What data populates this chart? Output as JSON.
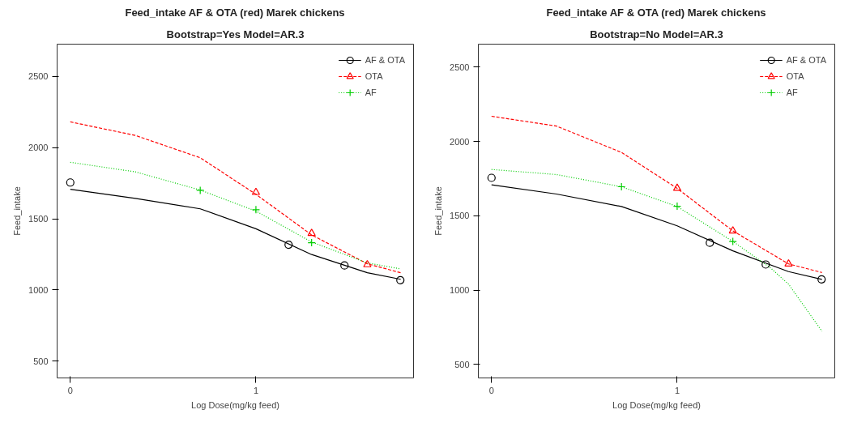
{
  "chart_data": [
    {
      "type": "line",
      "title": "Feed_intake AF & OTA (red) Marek chickens",
      "subtitle": "Bootstrap=Yes Model=AR.3",
      "xlabel": "Log Dose(mg/kg feed)",
      "ylabel": "Feed_intake",
      "xlim": [
        -0.071,
        1.849
      ],
      "ylim": [
        382,
        2727
      ],
      "xticks": [
        0,
        1
      ],
      "yticks": [
        500,
        1000,
        1500,
        2000,
        2500
      ],
      "grid": false,
      "legend": "top right",
      "series": [
        {
          "name": "AF & OTA",
          "color": "#000000",
          "line_style": "solid",
          "marker": "none",
          "x": [
            0,
            0.35,
            0.7,
            1.0,
            1.3,
            1.6,
            1.78
          ],
          "values": [
            1708,
            1643,
            1570,
            1430,
            1249,
            1121,
            1075
          ]
        },
        {
          "name": "OTA",
          "color": "#ff0000",
          "line_style": "dashed",
          "marker": "none",
          "x": [
            0,
            0.35,
            0.7,
            1.0,
            1.3,
            1.6,
            1.78
          ],
          "values": [
            2181,
            2086,
            1929,
            1672,
            1387,
            1184,
            1121
          ]
        },
        {
          "name": "AF",
          "color": "#00cd00",
          "line_style": "dotted",
          "marker": "none",
          "x": [
            0,
            0.35,
            0.7,
            1.0,
            1.3,
            1.6,
            1.78
          ],
          "values": [
            1897,
            1830,
            1702,
            1554,
            1337,
            1190,
            1148
          ]
        },
        {
          "type": "scatter",
          "color": "#000000",
          "marker": "circle",
          "x": [
            0,
            1.176,
            1.477,
            1.778
          ],
          "values": [
            1755,
            1318,
            1172,
            1069
          ]
        },
        {
          "type": "scatter",
          "color": "#ff0000",
          "marker": "triangle",
          "x": [
            1,
            1.3,
            1.6
          ],
          "values": [
            1686,
            1398,
            1178
          ]
        },
        {
          "type": "scatter",
          "color": "#00cd00",
          "marker": "cross",
          "x": [
            0.7,
            1,
            1.3
          ],
          "values": [
            1700,
            1564,
            1332
          ]
        }
      ]
    },
    {
      "type": "line",
      "title": "Feed_intake AF & OTA (red) Marek chickens",
      "subtitle": "Bootstrap=No Model=AR.3",
      "xlabel": "Log Dose(mg/kg feed)",
      "ylabel": "Feed_intake",
      "xlim": [
        -0.071,
        1.849
      ],
      "ylim": [
        410,
        2655
      ],
      "xticks": [
        0,
        1
      ],
      "yticks": [
        500,
        1000,
        1500,
        2000,
        2500
      ],
      "grid": false,
      "legend": "top right",
      "series": [
        {
          "name": "AF & OTA",
          "color": "#000000",
          "line_style": "solid",
          "marker": "none",
          "x": [
            0,
            0.35,
            0.7,
            1.0,
            1.3,
            1.6,
            1.78
          ],
          "values": [
            1709,
            1647,
            1563,
            1433,
            1265,
            1125,
            1073
          ]
        },
        {
          "name": "OTA",
          "color": "#ff0000",
          "line_style": "dashed",
          "marker": "none",
          "x": [
            0,
            0.35,
            0.7,
            1.0,
            1.3,
            1.6,
            1.78
          ],
          "values": [
            2170,
            2104,
            1927,
            1685,
            1399,
            1177,
            1119
          ]
        },
        {
          "name": "AF",
          "color": "#00cd00",
          "line_style": "dotted",
          "marker": "none",
          "x": [
            0,
            0.35,
            0.7,
            1.0,
            1.3,
            1.5,
            1.6,
            1.78
          ],
          "values": [
            1812,
            1778,
            1696,
            1563,
            1328,
            1153,
            1041,
            724
          ]
        },
        {
          "type": "scatter",
          "color": "#000000",
          "marker": "circle",
          "x": [
            0,
            1.176,
            1.477,
            1.778
          ],
          "values": [
            1756,
            1319,
            1173,
            1073
          ]
        },
        {
          "type": "scatter",
          "color": "#ff0000",
          "marker": "triangle",
          "x": [
            1,
            1.3,
            1.6
          ],
          "values": [
            1686,
            1399,
            1177
          ]
        },
        {
          "type": "scatter",
          "color": "#00cd00",
          "marker": "cross",
          "x": [
            0.7,
            1,
            1.3
          ],
          "values": [
            1696,
            1565,
            1328
          ]
        }
      ]
    }
  ]
}
